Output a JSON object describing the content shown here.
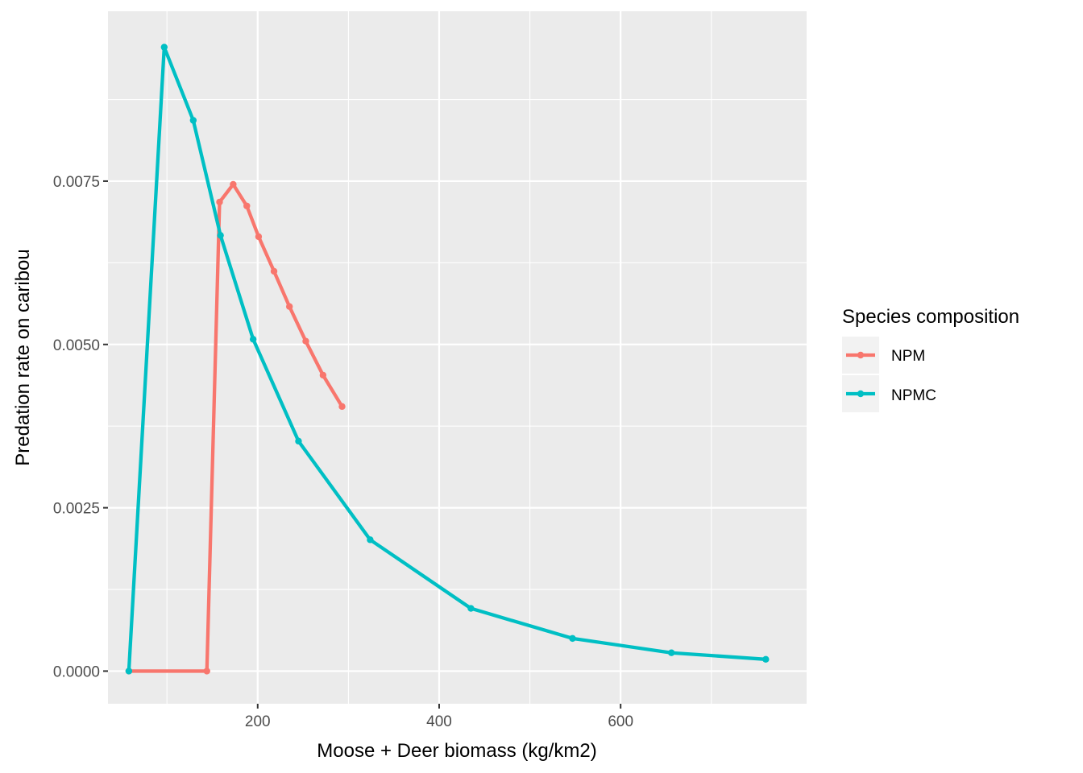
{
  "chart_data": {
    "type": "line",
    "xlabel": "Moose + Deer biomass (kg/km2)",
    "ylabel": "Predation rate on caribou",
    "xlim": [
      35,
      805
    ],
    "ylim": [
      -0.0005,
      0.0101
    ],
    "x_major_ticks": [
      200,
      400,
      600
    ],
    "x_tick_labels": [
      "200",
      "400",
      "600"
    ],
    "x_minor_ticks": [
      100,
      300,
      500,
      700
    ],
    "y_major_ticks": [
      0.0,
      0.0025,
      0.005,
      0.0075
    ],
    "y_tick_labels": [
      "0.0000",
      "0.0025",
      "0.0050",
      "0.0075"
    ],
    "y_minor_ticks": [
      0.00125,
      0.00375,
      0.00625,
      0.00875
    ],
    "grid": true,
    "legend": {
      "title": "Species composition",
      "position": "right"
    },
    "series": [
      {
        "name": "NPM",
        "color": "#F8766D",
        "points": [
          [
            58,
            0.0
          ],
          [
            144,
            0.0
          ],
          [
            158,
            0.00718
          ],
          [
            173,
            0.00745
          ],
          [
            188,
            0.00712
          ],
          [
            201,
            0.00665
          ],
          [
            218,
            0.00612
          ],
          [
            235,
            0.00558
          ],
          [
            253,
            0.00505
          ],
          [
            272,
            0.00453
          ],
          [
            293,
            0.00405
          ]
        ]
      },
      {
        "name": "NPMC",
        "color": "#00BFC4",
        "points": [
          [
            58,
            0.0
          ],
          [
            97,
            0.00955
          ],
          [
            129,
            0.00843
          ],
          [
            159,
            0.00667
          ],
          [
            195,
            0.00508
          ],
          [
            245,
            0.00352
          ],
          [
            324,
            0.00201
          ],
          [
            435,
            0.00096
          ],
          [
            547,
            0.0005
          ],
          [
            656,
            0.00028
          ],
          [
            760,
            0.00018
          ]
        ]
      }
    ]
  }
}
